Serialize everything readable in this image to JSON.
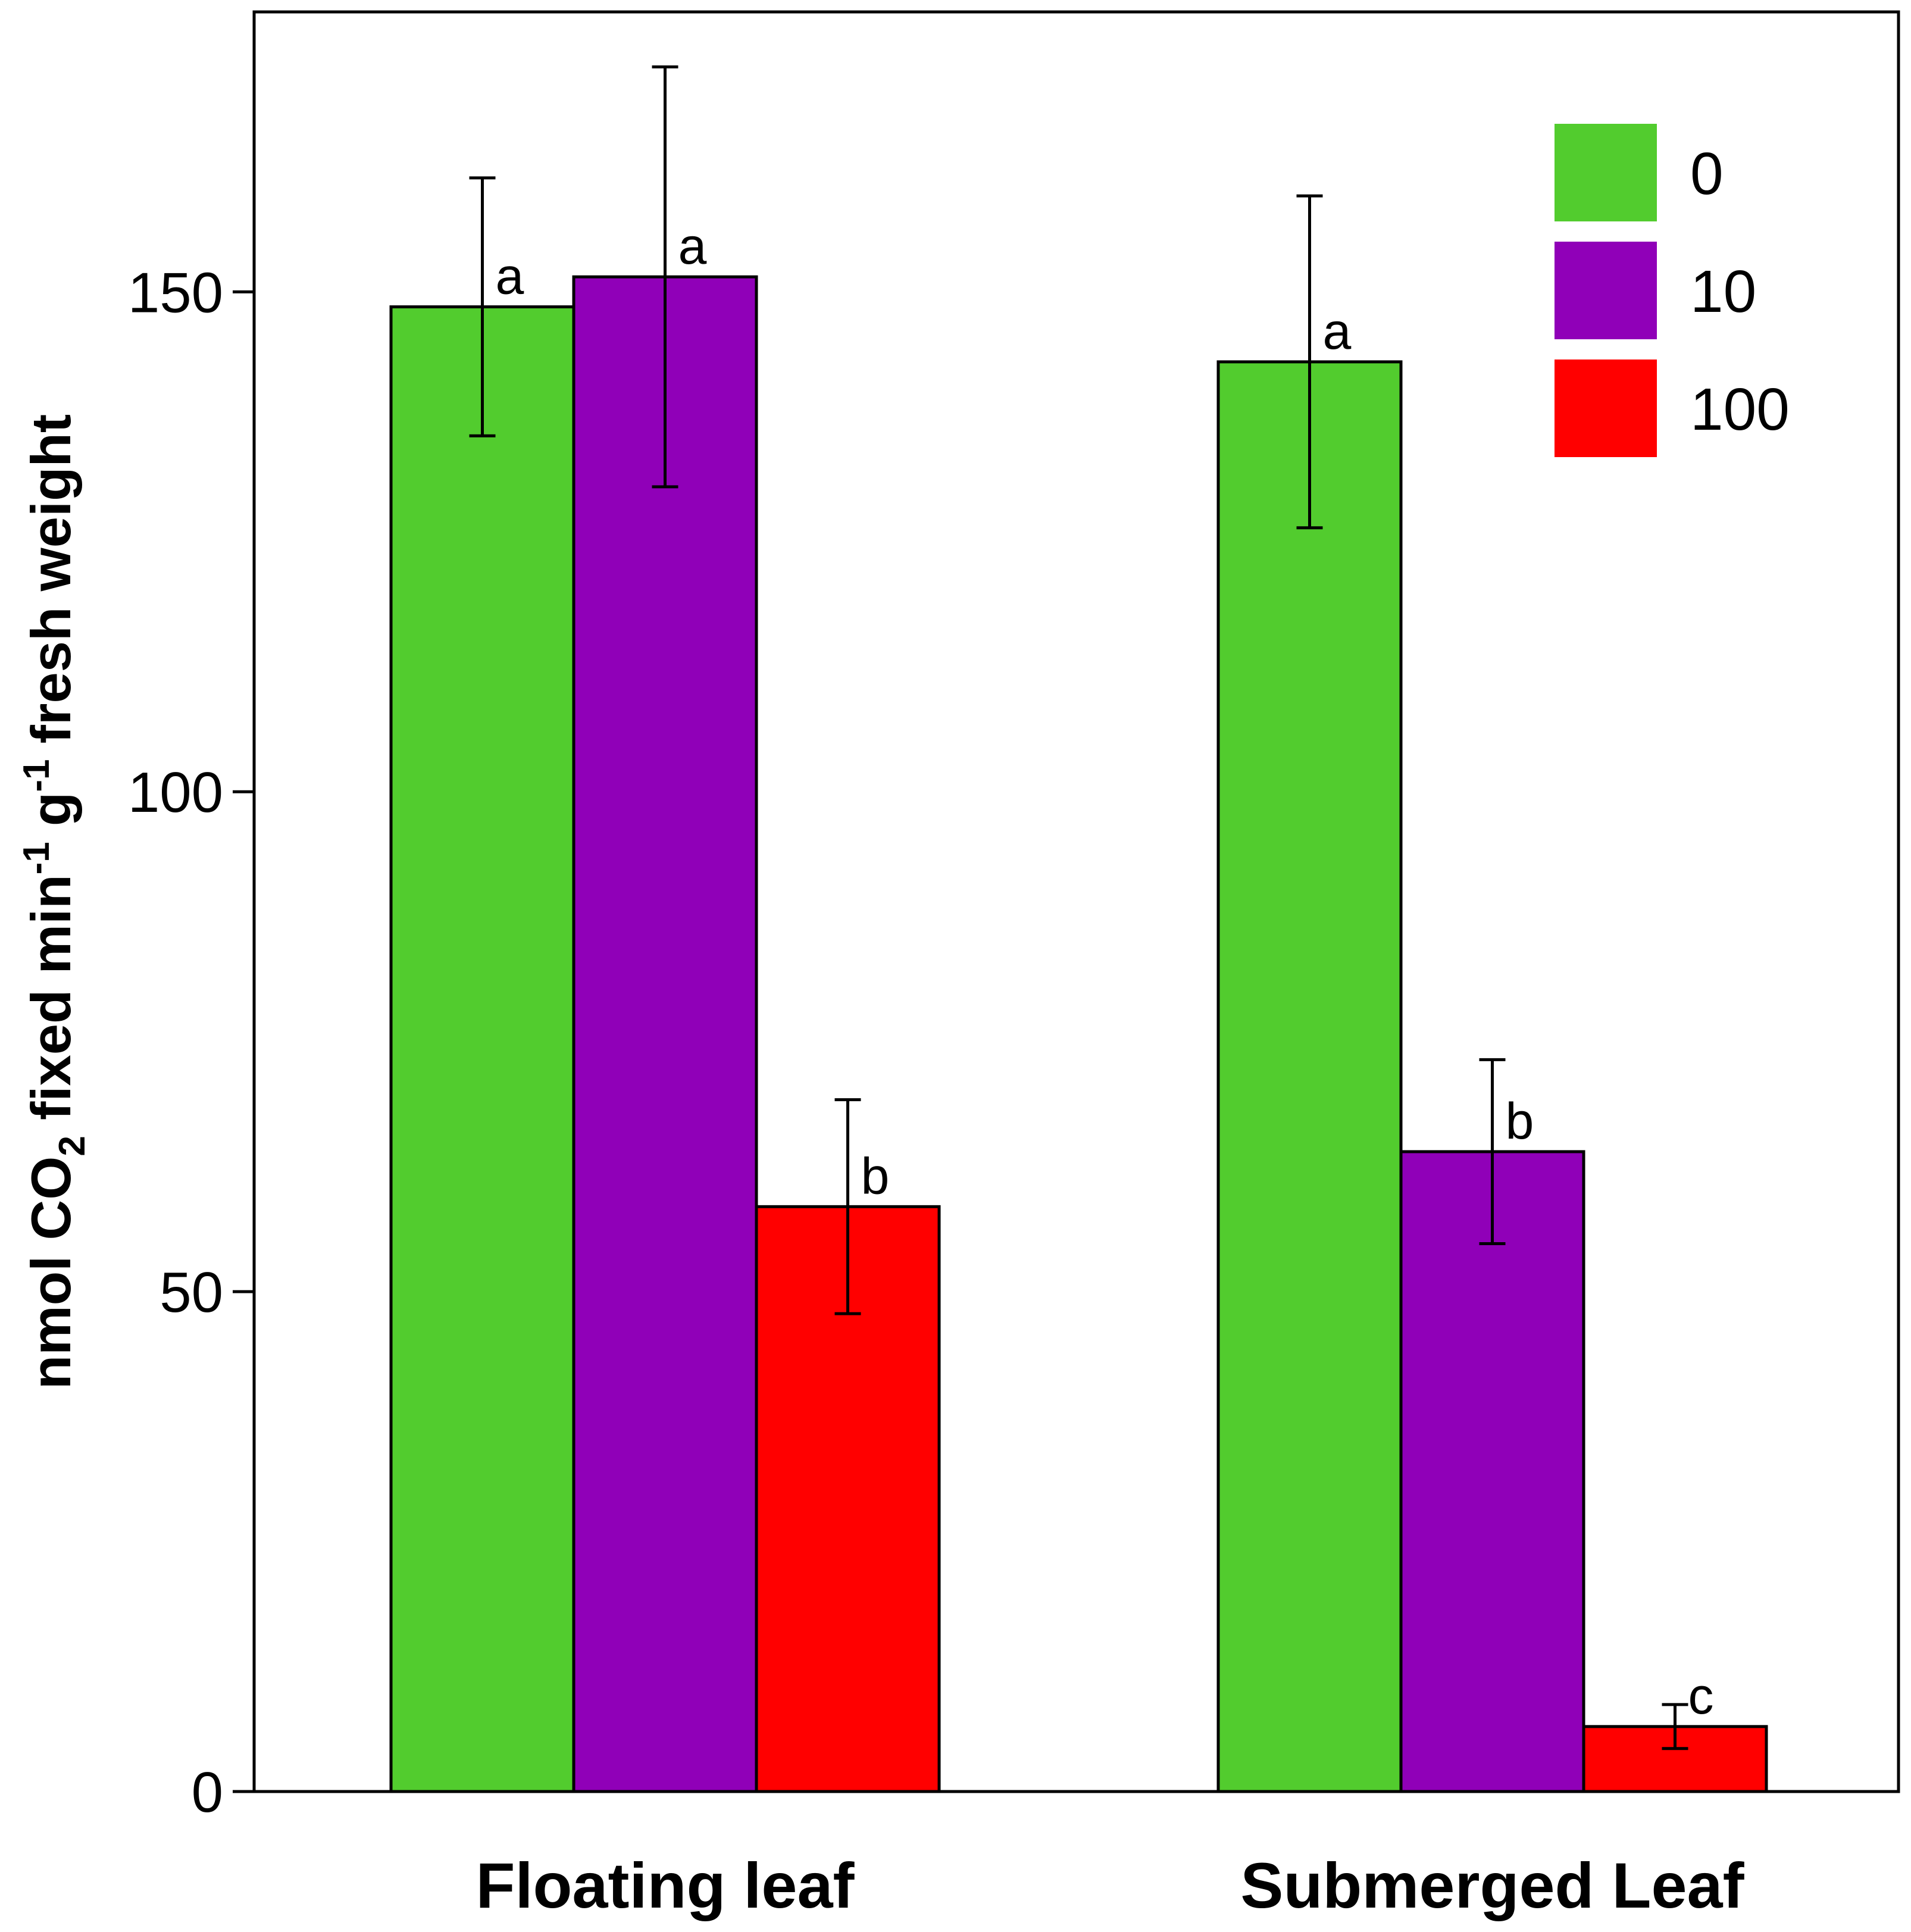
{
  "chart_data": {
    "type": "bar",
    "title": "",
    "xlabel": "",
    "ylabel": {
      "prefix": "nmol CO",
      "sub": "2",
      "mid1": " fixed min",
      "sup1": "-1",
      "mid2": " g",
      "sup2": "-1",
      "suffix": " fresh weight"
    },
    "ylim": [
      0,
      178
    ],
    "yticks": [
      0,
      50,
      100,
      150
    ],
    "ytick_labels": [
      "0",
      "50",
      "100",
      "150"
    ],
    "categories": [
      "Floating leaf",
      "Submerged Leaf"
    ],
    "legend_position": "top-right",
    "series": [
      {
        "name": "0",
        "color": "#52cc2e",
        "values": [
          148.5,
          143
        ],
        "errors": [
          12.9,
          16.6
        ],
        "letters": [
          "a",
          "a"
        ]
      },
      {
        "name": "10",
        "color": "#9000b8",
        "values": [
          151.5,
          64
        ],
        "errors": [
          21,
          9.2
        ],
        "letters": [
          "a",
          "b"
        ]
      },
      {
        "name": "100",
        "color": "#ff0000",
        "values": [
          58.5,
          6.5
        ],
        "errors": [
          10.7,
          2.2
        ],
        "letters": [
          "b",
          "c"
        ]
      }
    ]
  }
}
